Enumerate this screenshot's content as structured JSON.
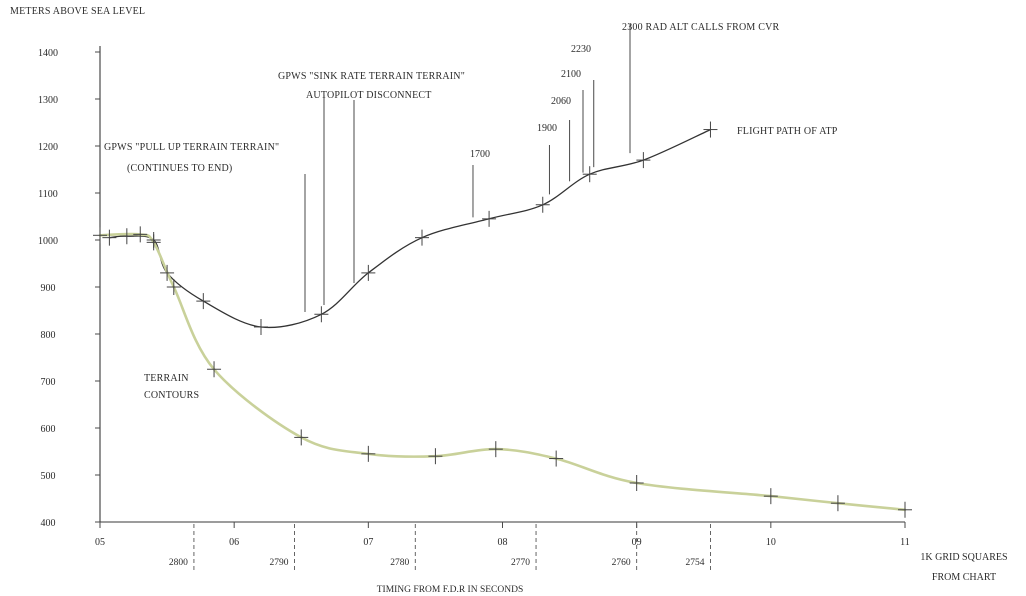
{
  "chart_data": {
    "type": "line",
    "ylabel": "METERS ABOVE SEA LEVEL",
    "y_ticks": [
      "1400",
      "1300",
      "1200",
      "1100",
      "1000",
      "900",
      "800",
      "700",
      "600",
      "500",
      "400"
    ],
    "ylim": [
      400,
      1400
    ],
    "x_ticks": [
      "05",
      "06",
      "07",
      "08",
      "09",
      "10",
      "11"
    ],
    "xlim": [
      5,
      11
    ],
    "xlabel_right_line1": "1K GRID SQUARES",
    "xlabel_right_line2": "FROM CHART",
    "timing_ticks": [
      {
        "label": "2800",
        "x": 5.7
      },
      {
        "label": "2790",
        "x": 6.45
      },
      {
        "label": "2780",
        "x": 7.35
      },
      {
        "label": "2770",
        "x": 8.25
      },
      {
        "label": "2760",
        "x": 9.0
      },
      {
        "label": "2754",
        "x": 9.55
      }
    ],
    "timing_label": "TIMING FROM F.D.R IN SECONDS",
    "series": [
      {
        "name": "FLIGHT PATH OF ATP",
        "color": "#333333",
        "points": [
          {
            "x": 5.07,
            "y": 1005
          },
          {
            "x": 5.2,
            "y": 1008
          },
          {
            "x": 5.4,
            "y": 1000
          },
          {
            "x": 5.5,
            "y": 930
          },
          {
            "x": 5.77,
            "y": 870
          },
          {
            "x": 6.2,
            "y": 815
          },
          {
            "x": 6.65,
            "y": 842
          },
          {
            "x": 7.0,
            "y": 930
          },
          {
            "x": 7.4,
            "y": 1005
          },
          {
            "x": 7.9,
            "y": 1045
          },
          {
            "x": 8.3,
            "y": 1075
          },
          {
            "x": 8.65,
            "y": 1140
          },
          {
            "x": 9.05,
            "y": 1170
          },
          {
            "x": 9.55,
            "y": 1235
          }
        ]
      },
      {
        "name": "TERRAIN CONTOURS",
        "color": "#c9d19a",
        "points": [
          {
            "x": 5.0,
            "y": 1010
          },
          {
            "x": 5.3,
            "y": 1012
          },
          {
            "x": 5.4,
            "y": 995
          },
          {
            "x": 5.55,
            "y": 900
          },
          {
            "x": 5.85,
            "y": 725
          },
          {
            "x": 6.5,
            "y": 580
          },
          {
            "x": 7.0,
            "y": 545
          },
          {
            "x": 7.5,
            "y": 540
          },
          {
            "x": 7.95,
            "y": 555
          },
          {
            "x": 8.4,
            "y": 535
          },
          {
            "x": 9.0,
            "y": 483
          },
          {
            "x": 10.0,
            "y": 455
          },
          {
            "x": 10.5,
            "y": 440
          },
          {
            "x": 11.0,
            "y": 426
          }
        ]
      }
    ],
    "series_labels": [
      {
        "line1": "FLIGHT PATH OF ATP",
        "line2": ""
      },
      {
        "line1": "TERRAIN",
        "line2": "CONTOURS"
      }
    ],
    "annotations": [
      {
        "line1": "GPWS \"PULL UP TERRAIN TERRAIN\"",
        "line2": "(CONTINUES TO END)"
      },
      {
        "line1": "GPWS \"SINK RATE TERRAIN TERRAIN\"",
        "line2": "AUTOPILOT DISCONNECT"
      },
      {
        "line1": "2300   RAD ALT CALLS FROM CVR",
        "line2": ""
      }
    ],
    "rad_alt_calls": [
      {
        "label": "1700",
        "x": 7.78
      },
      {
        "label": "1900",
        "x": 8.35
      },
      {
        "label": "2060",
        "x": 8.5
      },
      {
        "label": "2100",
        "x": 8.6
      },
      {
        "label": "2230",
        "x": 8.68
      }
    ],
    "legend": "none",
    "grid": false
  }
}
